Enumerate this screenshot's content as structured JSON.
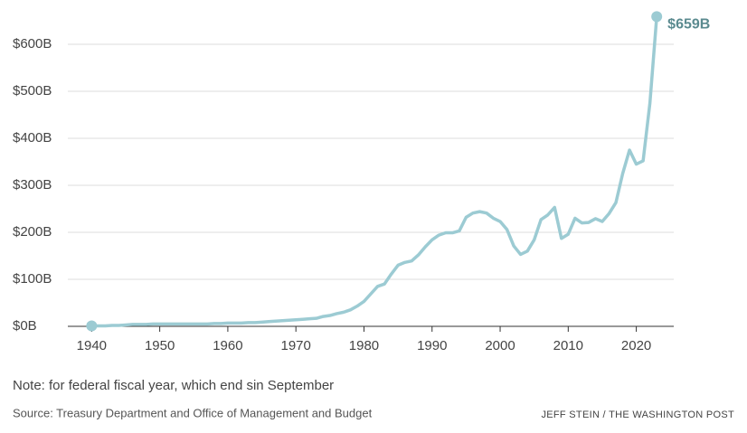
{
  "chart_data": {
    "type": "line",
    "x": [
      1940,
      1941,
      1942,
      1943,
      1944,
      1945,
      1946,
      1947,
      1948,
      1949,
      1950,
      1951,
      1952,
      1953,
      1954,
      1955,
      1956,
      1957,
      1958,
      1959,
      1960,
      1961,
      1962,
      1963,
      1964,
      1965,
      1966,
      1967,
      1968,
      1969,
      1970,
      1971,
      1972,
      1973,
      1974,
      1975,
      1976,
      1977,
      1978,
      1979,
      1980,
      1981,
      1982,
      1983,
      1984,
      1985,
      1986,
      1987,
      1988,
      1989,
      1990,
      1991,
      1992,
      1993,
      1994,
      1995,
      1996,
      1997,
      1998,
      1999,
      2000,
      2001,
      2002,
      2003,
      2004,
      2005,
      2006,
      2007,
      2008,
      2009,
      2010,
      2011,
      2012,
      2013,
      2014,
      2015,
      2016,
      2017,
      2018,
      2019,
      2020,
      2021,
      2022,
      2023
    ],
    "series": [
      {
        "color": "#9ccbd3",
        "values": [
          1,
          1,
          1,
          2,
          2,
          3,
          4,
          4,
          4,
          5,
          5,
          5,
          5,
          5,
          5,
          5,
          5,
          5,
          6,
          6,
          7,
          7,
          7,
          8,
          8,
          9,
          10,
          11,
          12,
          13,
          14,
          15,
          16,
          17,
          21,
          23,
          27,
          30,
          35,
          43,
          53,
          69,
          85,
          90,
          111,
          130,
          136,
          139,
          152,
          169,
          184,
          194,
          199,
          199,
          203,
          232,
          241,
          244,
          241,
          230,
          223,
          206,
          171,
          153,
          160,
          184,
          227,
          237,
          253,
          187,
          196,
          230,
          220,
          221,
          229,
          223,
          240,
          263,
          325,
          375,
          345,
          352,
          475,
          659
        ],
        "value_labels": {
          "83": "$659B"
        }
      }
    ],
    "xlim": [
      1936.5,
      2025.5
    ],
    "xticks": [
      1940,
      1950,
      1960,
      1970,
      1980,
      1990,
      2000,
      2010,
      2020
    ],
    "ylim": [
      0,
      600
    ],
    "yticks": [
      {
        "value": 0,
        "label": "$0B"
      },
      {
        "value": 100,
        "label": "$100B"
      },
      {
        "value": 200,
        "label": "$200B"
      },
      {
        "value": 300,
        "label": "$300B"
      },
      {
        "value": 400,
        "label": "$400B"
      },
      {
        "value": 500,
        "label": "$500B"
      },
      {
        "value": 600,
        "label": "$600B"
      }
    ],
    "grid": true,
    "note": "Note: for federal fiscal year, which end sin September",
    "source": "Source: Treasury Department and Office of Management and Budget",
    "credit": "JEFF STEIN / THE WASHINGTON POST"
  }
}
